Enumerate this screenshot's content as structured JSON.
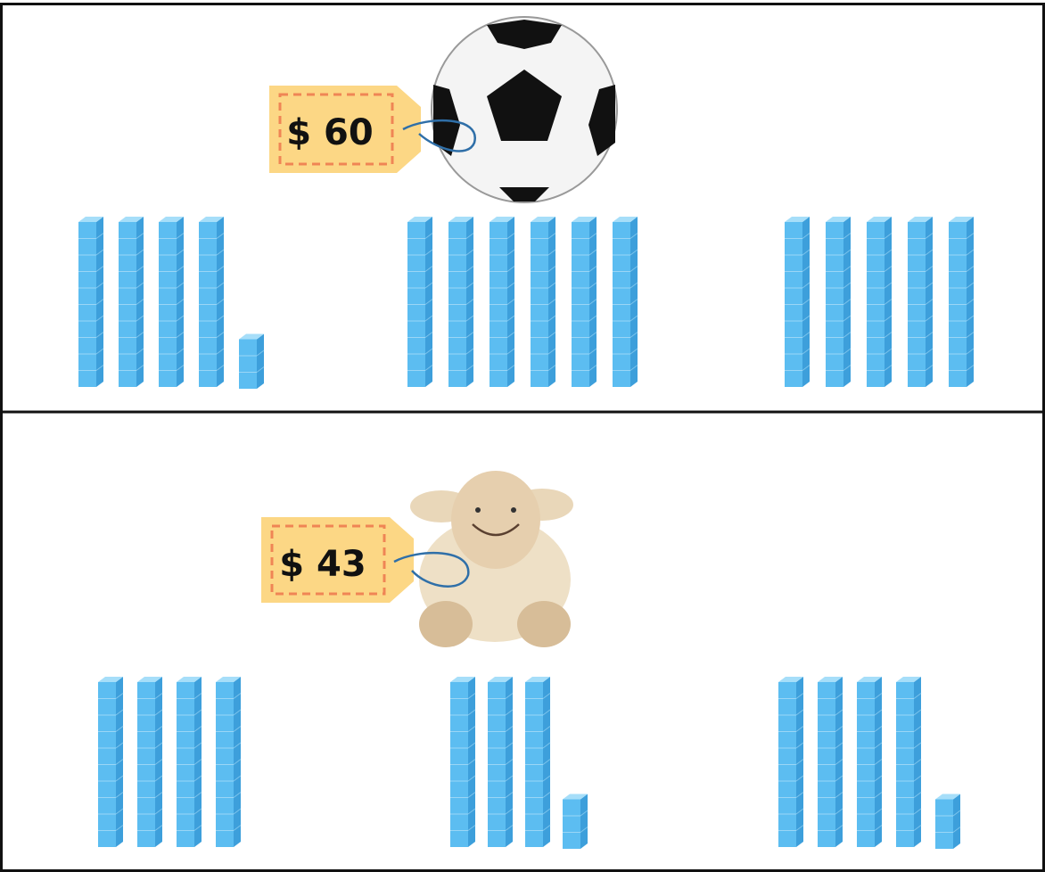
{
  "panels": [
    {
      "price": "$ 60",
      "groups": [
        {
          "tens": 4,
          "ones": 3
        },
        {
          "tens": 6,
          "ones": 0
        },
        {
          "tens": 5,
          "ones": 0
        }
      ]
    },
    {
      "price": "$ 43",
      "groups": [
        {
          "tens": 4,
          "ones": 0
        },
        {
          "tens": 3,
          "ones": 3
        },
        {
          "tens": 4,
          "ones": 3
        }
      ]
    }
  ]
}
